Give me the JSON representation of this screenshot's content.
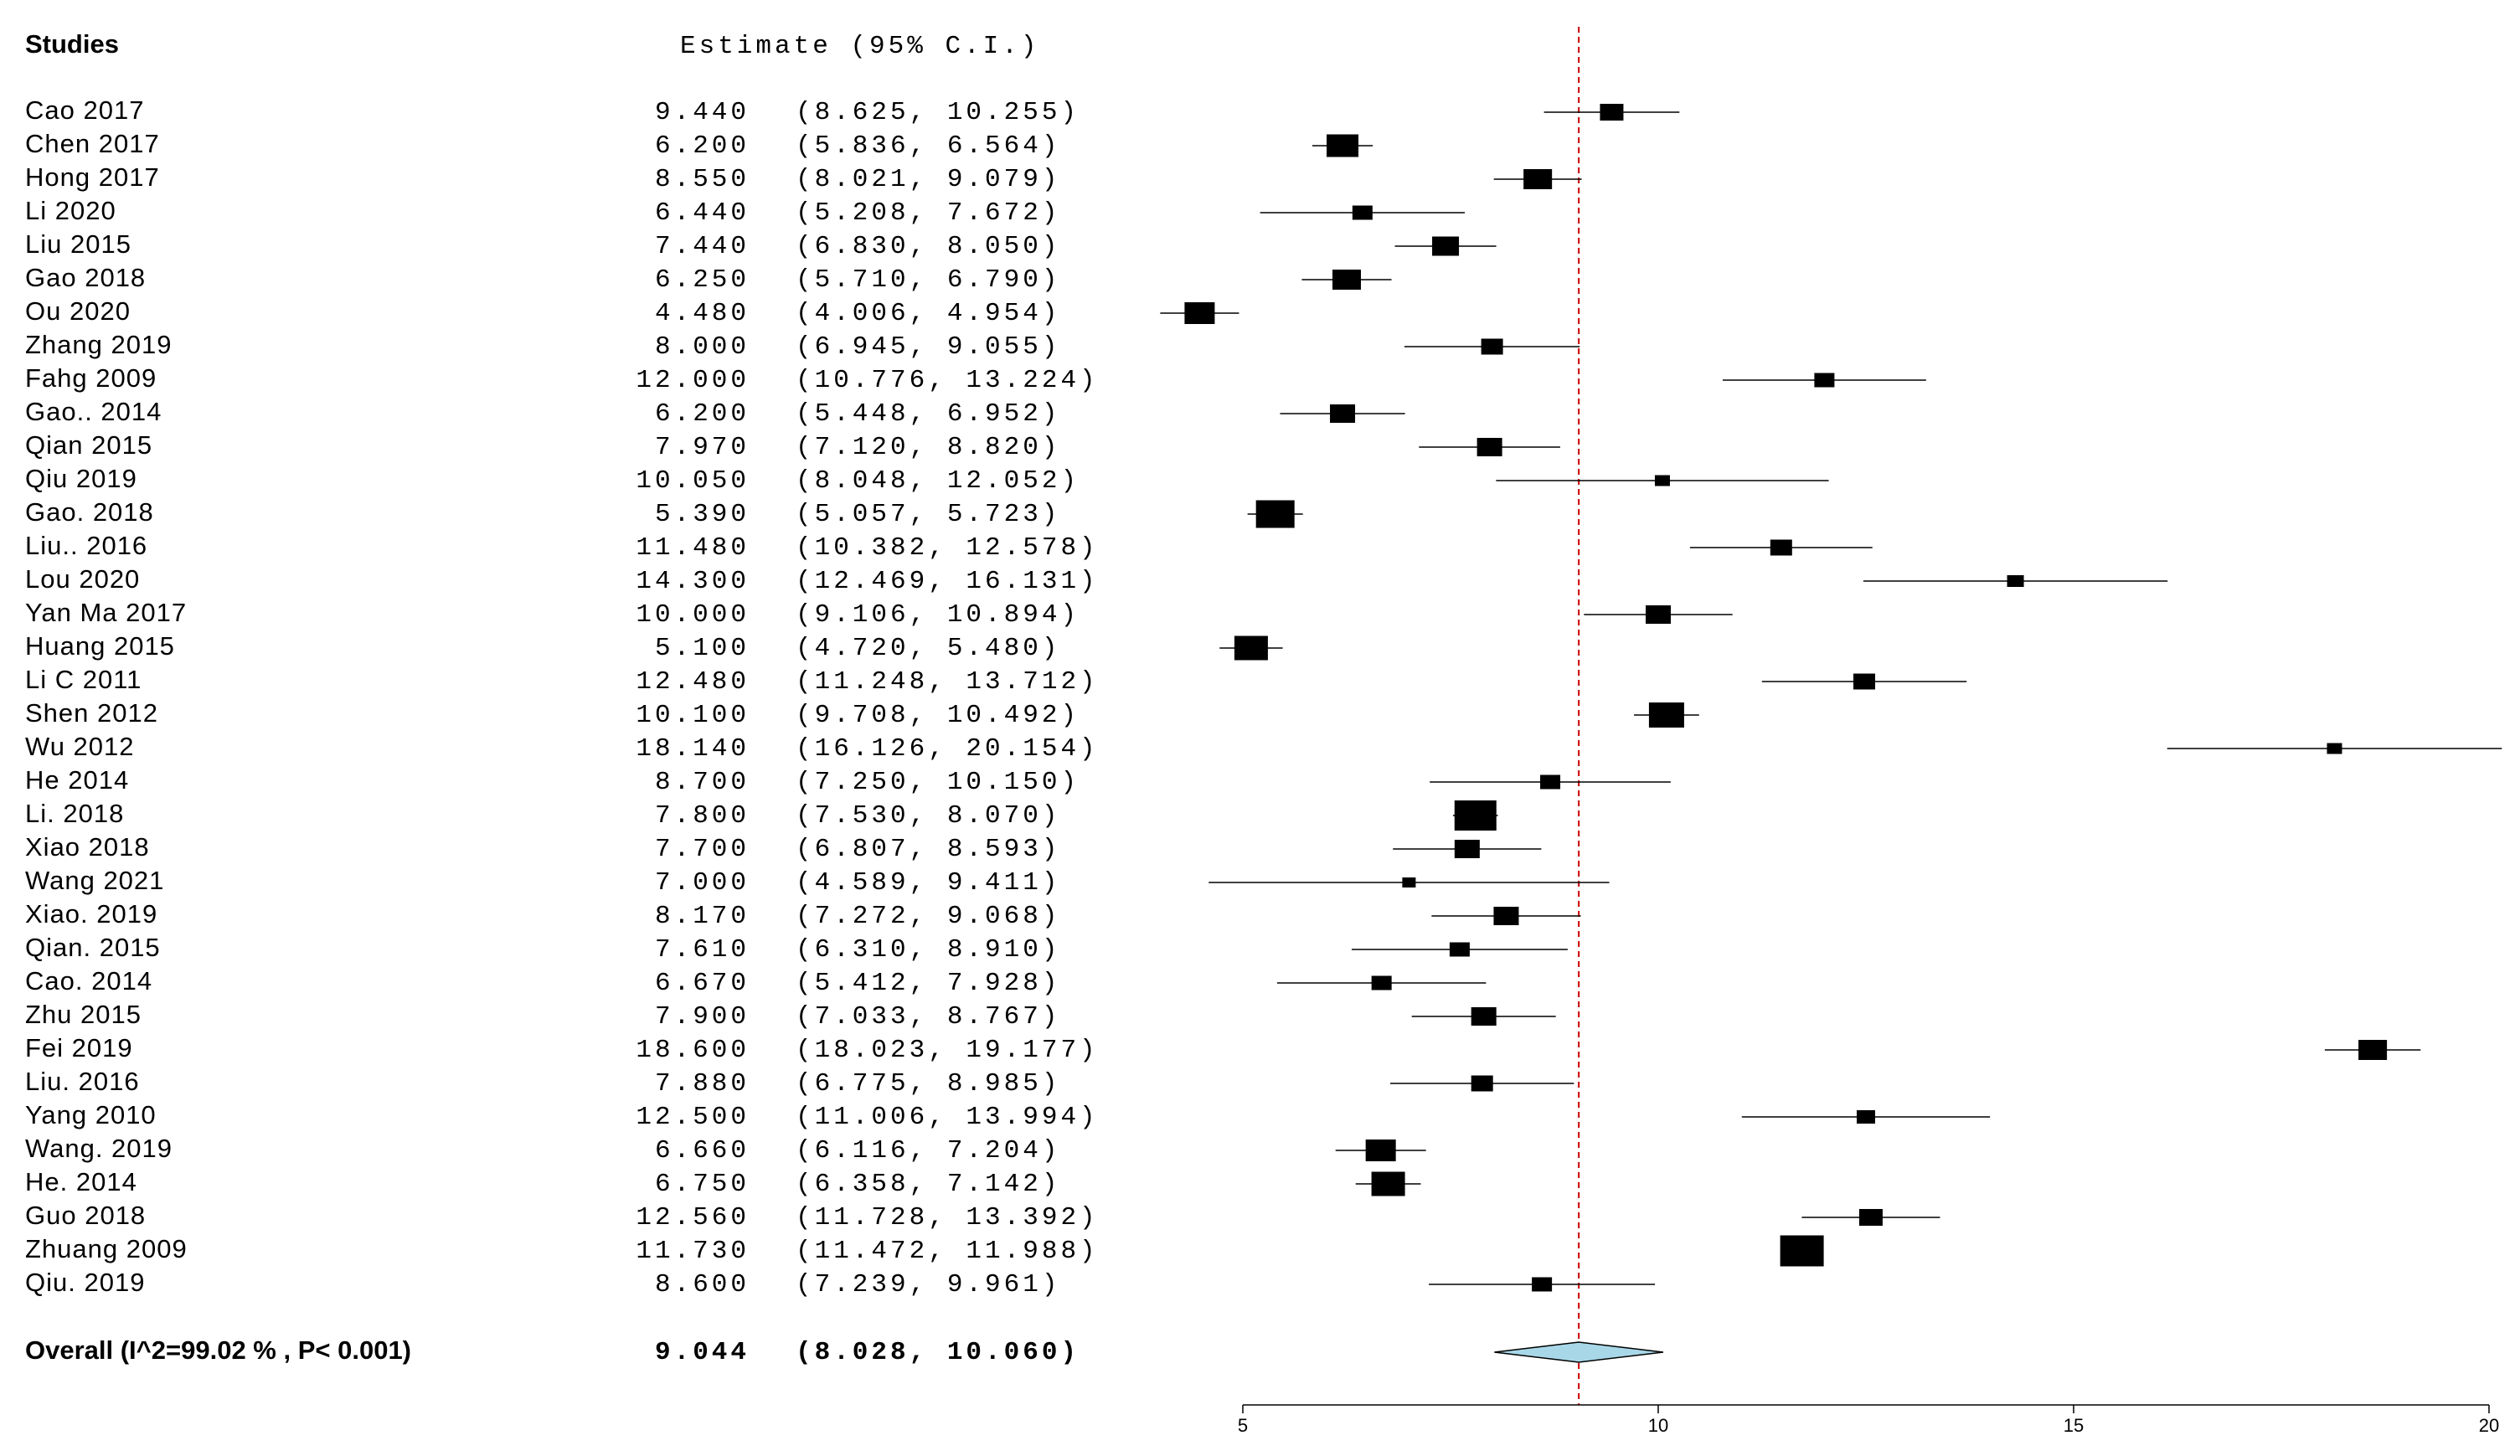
{
  "chart_data": {
    "type": "forest",
    "header": {
      "studies": "Studies",
      "estimate": "Estimate (95% C.I.)"
    },
    "studies": [
      {
        "name": "Cao  2017",
        "est": "9.440",
        "ci": "(8.625, 10.255)",
        "value": 9.44,
        "lo": 8.625,
        "hi": 10.255,
        "w": 28
      },
      {
        "name": "Chen  2017",
        "est": "6.200",
        "ci": "(5.836, 6.564)",
        "value": 6.2,
        "lo": 5.836,
        "hi": 6.564,
        "w": 38
      },
      {
        "name": "Hong 2017",
        "est": "8.550",
        "ci": "(8.021, 9.079)",
        "value": 8.55,
        "lo": 8.021,
        "hi": 9.079,
        "w": 34
      },
      {
        "name": "Li  2020",
        "est": "6.440",
        "ci": "(5.208, 7.672)",
        "value": 6.44,
        "lo": 5.208,
        "hi": 7.672,
        "w": 24
      },
      {
        "name": "Liu  2015",
        "est": "7.440",
        "ci": "(6.830, 8.050)",
        "value": 7.44,
        "lo": 6.83,
        "hi": 8.05,
        "w": 32
      },
      {
        "name": "Gao  2018",
        "est": "6.250",
        "ci": "(5.710, 6.790)",
        "value": 6.25,
        "lo": 5.71,
        "hi": 6.79,
        "w": 34
      },
      {
        "name": "Ou  2020",
        "est": "4.480",
        "ci": "(4.006, 4.954)",
        "value": 4.48,
        "lo": 4.006,
        "hi": 4.954,
        "w": 36
      },
      {
        "name": "Zhang  2019",
        "est": "8.000",
        "ci": "(6.945, 9.055)",
        "value": 8.0,
        "lo": 6.945,
        "hi": 9.055,
        "w": 26
      },
      {
        "name": "Fahg  2009",
        "est": "12.000",
        "ci": "(10.776, 13.224)",
        "value": 12.0,
        "lo": 10.776,
        "hi": 13.224,
        "w": 24
      },
      {
        "name": "Gao.. 2014",
        "est": "6.200",
        "ci": "(5.448, 6.952)",
        "value": 6.2,
        "lo": 5.448,
        "hi": 6.952,
        "w": 30
      },
      {
        "name": "Qian  2015",
        "est": "7.970",
        "ci": "(7.120, 8.820)",
        "value": 7.97,
        "lo": 7.12,
        "hi": 8.82,
        "w": 30
      },
      {
        "name": "Qiu 2019",
        "est": "10.050",
        "ci": "(8.048, 12.052)",
        "value": 10.05,
        "lo": 8.048,
        "hi": 12.052,
        "w": 18
      },
      {
        "name": "Gao. 2018",
        "est": "5.390",
        "ci": "(5.057, 5.723)",
        "value": 5.39,
        "lo": 5.057,
        "hi": 5.723,
        "w": 46
      },
      {
        "name": "Liu.. 2016",
        "est": "11.480",
        "ci": "(10.382, 12.578)",
        "value": 11.48,
        "lo": 10.382,
        "hi": 12.578,
        "w": 26
      },
      {
        "name": "Lou  2020",
        "est": "14.300",
        "ci": "(12.469, 16.131)",
        "value": 14.3,
        "lo": 12.469,
        "hi": 16.131,
        "w": 20
      },
      {
        "name": "Yan Ma  2017",
        "est": "10.000",
        "ci": "(9.106, 10.894)",
        "value": 10.0,
        "lo": 9.106,
        "hi": 10.894,
        "w": 30
      },
      {
        "name": "Huang  2015",
        "est": "5.100",
        "ci": "(4.720, 5.480)",
        "value": 5.1,
        "lo": 4.72,
        "hi": 5.48,
        "w": 40
      },
      {
        "name": "Li C  2011",
        "est": "12.480",
        "ci": "(11.248, 13.712)",
        "value": 12.48,
        "lo": 11.248,
        "hi": 13.712,
        "w": 26
      },
      {
        "name": "Shen  2012",
        "est": "10.100",
        "ci": "(9.708, 10.492)",
        "value": 10.1,
        "lo": 9.708,
        "hi": 10.492,
        "w": 42
      },
      {
        "name": "Wu  2012",
        "est": "18.140",
        "ci": "(16.126, 20.154)",
        "value": 18.14,
        "lo": 16.126,
        "hi": 20.154,
        "w": 18
      },
      {
        "name": "He 2014",
        "est": "8.700",
        "ci": "(7.250, 10.150)",
        "value": 8.7,
        "lo": 7.25,
        "hi": 10.15,
        "w": 24
      },
      {
        "name": "Li. 2018",
        "est": "7.800",
        "ci": "(7.530, 8.070)",
        "value": 7.8,
        "lo": 7.53,
        "hi": 8.07,
        "w": 50
      },
      {
        "name": "Xiao  2018",
        "est": "7.700",
        "ci": "(6.807, 8.593)",
        "value": 7.7,
        "lo": 6.807,
        "hi": 8.593,
        "w": 30
      },
      {
        "name": "Wang  2021",
        "est": "7.000",
        "ci": "(4.589, 9.411)",
        "value": 7.0,
        "lo": 4.589,
        "hi": 9.411,
        "w": 16
      },
      {
        "name": "Xiao. 2019",
        "est": "8.170",
        "ci": "(7.272, 9.068)",
        "value": 8.17,
        "lo": 7.272,
        "hi": 9.068,
        "w": 30
      },
      {
        "name": "Qian. 2015",
        "est": "7.610",
        "ci": "(6.310, 8.910)",
        "value": 7.61,
        "lo": 6.31,
        "hi": 8.91,
        "w": 24
      },
      {
        "name": "Cao. 2014",
        "est": "6.670",
        "ci": "(5.412, 7.928)",
        "value": 6.67,
        "lo": 5.412,
        "hi": 7.928,
        "w": 24
      },
      {
        "name": "Zhu 2015",
        "est": "7.900",
        "ci": "(7.033, 8.767)",
        "value": 7.9,
        "lo": 7.033,
        "hi": 8.767,
        "w": 30
      },
      {
        "name": "Fei  2019",
        "est": "18.600",
        "ci": "(18.023, 19.177)",
        "value": 18.6,
        "lo": 18.023,
        "hi": 19.177,
        "w": 34
      },
      {
        "name": "Liu. 2016",
        "est": "7.880",
        "ci": "(6.775, 8.985)",
        "value": 7.88,
        "lo": 6.775,
        "hi": 8.985,
        "w": 26
      },
      {
        "name": "Yang  2010",
        "est": "12.500",
        "ci": "(11.006, 13.994)",
        "value": 12.5,
        "lo": 11.006,
        "hi": 13.994,
        "w": 22
      },
      {
        "name": "Wang. 2019",
        "est": "6.660",
        "ci": "(6.116, 7.204)",
        "value": 6.66,
        "lo": 6.116,
        "hi": 7.204,
        "w": 36
      },
      {
        "name": "He. 2014",
        "est": "6.750",
        "ci": "(6.358, 7.142)",
        "value": 6.75,
        "lo": 6.358,
        "hi": 7.142,
        "w": 40
      },
      {
        "name": "Guo 2018",
        "est": "12.560",
        "ci": "(11.728, 13.392)",
        "value": 12.56,
        "lo": 11.728,
        "hi": 13.392,
        "w": 28
      },
      {
        "name": "Zhuang 2009",
        "est": "11.730",
        "ci": "(11.472, 11.988)",
        "value": 11.73,
        "lo": 11.472,
        "hi": 11.988,
        "w": 52
      },
      {
        "name": "Qiu. 2019",
        "est": "8.600",
        "ci": "(7.239, 9.961)",
        "value": 8.6,
        "lo": 7.239,
        "hi": 9.961,
        "w": 24
      }
    ],
    "overall": {
      "label": "Overall (I^2=99.02 % , P< 0.001)",
      "est": "9.044",
      "ci": "(8.028, 10.060)",
      "value": 9.044,
      "lo": 8.028,
      "hi": 10.06
    },
    "xlim": [
      5,
      20
    ],
    "xticks": [
      5,
      10,
      15,
      20
    ],
    "reference_line": 9.044,
    "colors": {
      "box": "#000000",
      "reference": "#cc0000",
      "diamond_fill": "#a8d8e8",
      "diamond_stroke": "#000000"
    }
  }
}
